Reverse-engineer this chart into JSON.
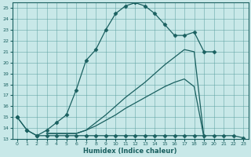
{
  "xlabel": "Humidex (Indice chaleur)",
  "background_color": "#c8e8e8",
  "grid_color": "#5aa0a0",
  "line_color": "#1a6060",
  "xlim": [
    -0.5,
    23.5
  ],
  "ylim": [
    13,
    25.5
  ],
  "yticks": [
    13,
    14,
    15,
    16,
    17,
    18,
    19,
    20,
    21,
    22,
    23,
    24,
    25
  ],
  "xticks": [
    0,
    1,
    2,
    3,
    4,
    5,
    6,
    7,
    8,
    9,
    10,
    11,
    12,
    13,
    14,
    15,
    16,
    17,
    18,
    19,
    20,
    21,
    22,
    23
  ],
  "series": [
    {
      "x": [
        0,
        1,
        2,
        3,
        4,
        5,
        6,
        7,
        8,
        9,
        10,
        11,
        12,
        13,
        14,
        15,
        16,
        17,
        18,
        19,
        20
      ],
      "y": [
        15,
        13.8,
        13.3,
        13.8,
        14.5,
        15.2,
        17.5,
        20.2,
        21.2,
        23,
        24.5,
        25.2,
        25.5,
        25.2,
        24.5,
        23.5,
        22.5,
        22.5,
        22.8,
        21,
        21
      ],
      "marker": "D",
      "markersize": 2.5,
      "linewidth": 0.9
    },
    {
      "x": [
        0,
        1,
        2,
        3,
        4,
        5,
        6,
        7,
        8,
        9,
        10,
        11,
        12,
        13,
        14,
        15,
        16,
        17,
        18,
        19,
        20,
        21,
        22,
        23
      ],
      "y": [
        15,
        13.8,
        13.3,
        13.3,
        13.3,
        13.3,
        13.3,
        13.3,
        13.3,
        13.3,
        13.3,
        13.3,
        13.3,
        13.3,
        13.3,
        13.3,
        13.3,
        13.3,
        13.3,
        13.3,
        13.3,
        13.3,
        13.3,
        13.1
      ],
      "marker": "D",
      "markersize": 2.5,
      "linewidth": 0.9
    },
    {
      "x": [
        3,
        4,
        5,
        6,
        7,
        8,
        9,
        10,
        11,
        12,
        13,
        14,
        15,
        16,
        17,
        18,
        19,
        20,
        21,
        22,
        23
      ],
      "y": [
        13.5,
        13.5,
        13.5,
        13.5,
        13.8,
        14.2,
        14.7,
        15.2,
        15.8,
        16.3,
        16.8,
        17.3,
        17.8,
        18.2,
        18.5,
        17.8,
        13.1,
        null,
        null,
        null,
        null
      ],
      "marker": null,
      "markersize": 0,
      "linewidth": 0.9
    },
    {
      "x": [
        3,
        4,
        5,
        6,
        7,
        8,
        9,
        10,
        11,
        12,
        13,
        14,
        15,
        16,
        17,
        18,
        19,
        20,
        21,
        22,
        23
      ],
      "y": [
        13.5,
        13.5,
        13.5,
        13.5,
        13.8,
        14.5,
        15.2,
        16,
        16.8,
        17.5,
        18.2,
        19,
        19.8,
        20.5,
        21.2,
        21,
        13.1,
        null,
        null,
        null,
        null
      ],
      "marker": null,
      "markersize": 0,
      "linewidth": 0.9
    }
  ]
}
